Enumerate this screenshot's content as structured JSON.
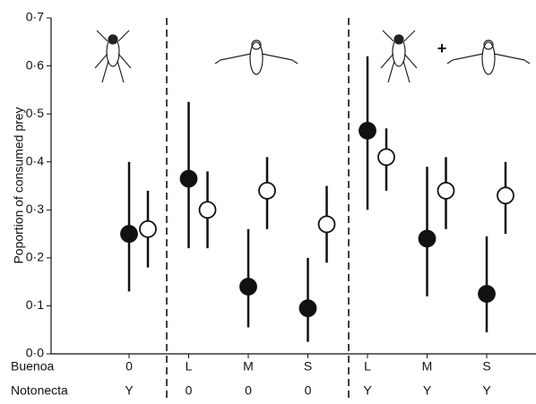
{
  "chart_data": {
    "type": "errorbar-scatter",
    "y_label": "Poportion of consumed prey",
    "annotation": "+",
    "categories": [
      "0",
      "L",
      "M",
      "S",
      "L",
      "M",
      "S"
    ],
    "row_labels": [
      "Buenoa",
      "Notonecta"
    ],
    "second_row": [
      "Y",
      "0",
      "0",
      "0",
      "Y",
      "Y",
      "Y"
    ],
    "ylim": [
      0,
      0.7
    ],
    "yticks": [
      {
        "value": 0,
        "label": "0·0"
      },
      {
        "value": 0.1,
        "label": "0·1"
      },
      {
        "value": 0.2,
        "label": "0·2"
      },
      {
        "value": 0.3,
        "label": "0·3"
      },
      {
        "value": 0.4,
        "label": "0·4"
      },
      {
        "value": 0.5,
        "label": "0·5"
      },
      {
        "value": 0.6,
        "label": "0·6"
      },
      {
        "value": 0.7,
        "label": "0·7"
      }
    ],
    "series": [
      {
        "color": "#111111",
        "filled": true,
        "values": [
          0.25,
          0.365,
          0.14,
          0.095,
          0.465,
          0.24,
          0.125
        ],
        "lower": [
          0.13,
          0.22,
          0.055,
          0.025,
          0.3,
          0.12,
          0.045
        ],
        "upper": [
          0.4,
          0.525,
          0.26,
          0.2,
          0.62,
          0.39,
          0.245
        ]
      },
      {
        "color": "#111111",
        "filled": false,
        "values": [
          0.26,
          0.3,
          0.34,
          0.27,
          0.41,
          0.34,
          0.33
        ],
        "lower": [
          0.18,
          0.22,
          0.26,
          0.19,
          0.34,
          0.26,
          0.25
        ],
        "upper": [
          0.34,
          0.38,
          0.41,
          0.35,
          0.47,
          0.41,
          0.4
        ]
      }
    ]
  }
}
